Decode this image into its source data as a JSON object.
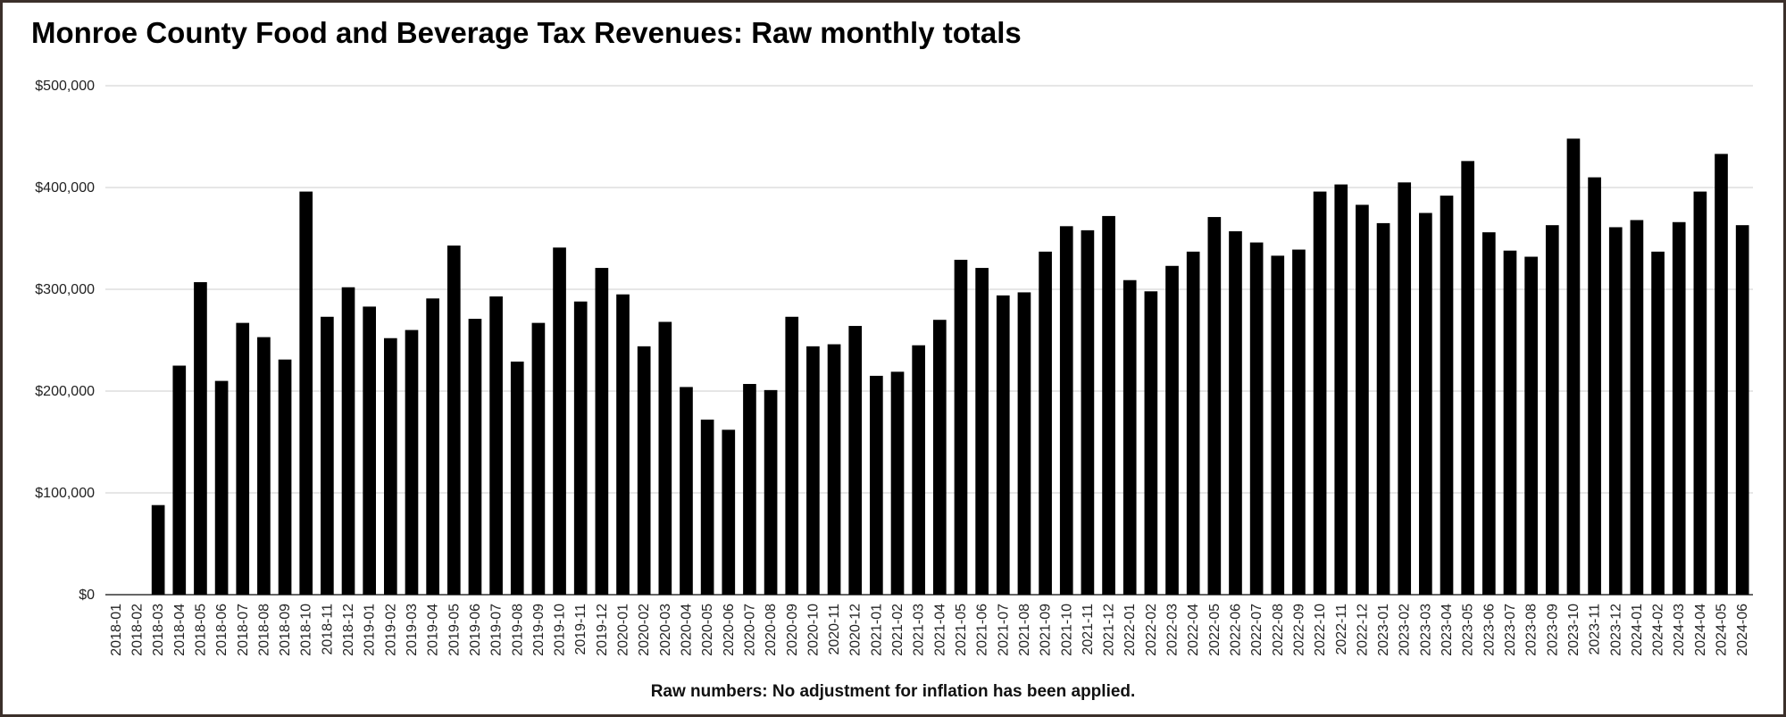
{
  "title": "Monroe County Food and Beverage Tax Revenues: Raw monthly totals",
  "footnote": "Raw numbers: No adjustment for inflation has been applied.",
  "colors": {
    "bar": "#000000",
    "grid": "#cccccc",
    "axis": "#333333"
  },
  "chart_data": {
    "type": "bar",
    "title": "Monroe County Food and Beverage Tax Revenues: Raw monthly totals",
    "xlabel": "",
    "ylabel": "",
    "ylim": [
      0,
      500000
    ],
    "yticks": [
      0,
      100000,
      200000,
      300000,
      400000,
      500000
    ],
    "ytick_labels": [
      "$0",
      "$100,000",
      "$200,000",
      "$300,000",
      "$400,000",
      "$500,000"
    ],
    "grid": true,
    "legend": "none",
    "categories": [
      "2018-01",
      "2018-02",
      "2018-03",
      "2018-04",
      "2018-05",
      "2018-06",
      "2018-07",
      "2018-08",
      "2018-09",
      "2018-10",
      "2018-11",
      "2018-12",
      "2019-01",
      "2019-02",
      "2019-03",
      "2019-04",
      "2019-05",
      "2019-06",
      "2019-07",
      "2019-08",
      "2019-09",
      "2019-10",
      "2019-11",
      "2019-12",
      "2020-01",
      "2020-02",
      "2020-03",
      "2020-04",
      "2020-05",
      "2020-06",
      "2020-07",
      "2020-08",
      "2020-09",
      "2020-10",
      "2020-11",
      "2020-12",
      "2021-01",
      "2021-02",
      "2021-03",
      "2021-04",
      "2021-05",
      "2021-06",
      "2021-07",
      "2021-08",
      "2021-09",
      "2021-10",
      "2021-11",
      "2021-12",
      "2022-01",
      "2022-02",
      "2022-03",
      "2022-04",
      "2022-05",
      "2022-06",
      "2022-07",
      "2022-08",
      "2022-09",
      "2022-10",
      "2022-11",
      "2022-12",
      "2023-01",
      "2023-02",
      "2023-03",
      "2023-04",
      "2023-05",
      "2023-06",
      "2023-07",
      "2023-08",
      "2023-09",
      "2023-10",
      "2023-11",
      "2023-12",
      "2024-01",
      "2024-02",
      "2024-03",
      "2024-04",
      "2024-05",
      "2024-06"
    ],
    "values": [
      0,
      0,
      88000,
      225000,
      307000,
      210000,
      267000,
      253000,
      231000,
      396000,
      273000,
      302000,
      283000,
      252000,
      260000,
      291000,
      343000,
      271000,
      293000,
      229000,
      267000,
      341000,
      288000,
      321000,
      295000,
      244000,
      268000,
      204000,
      172000,
      162000,
      207000,
      201000,
      273000,
      244000,
      246000,
      264000,
      215000,
      219000,
      245000,
      270000,
      329000,
      321000,
      294000,
      297000,
      337000,
      362000,
      358000,
      372000,
      309000,
      298000,
      323000,
      337000,
      371000,
      357000,
      346000,
      333000,
      339000,
      396000,
      403000,
      383000,
      365000,
      405000,
      375000,
      392000,
      426000,
      356000,
      338000,
      332000,
      363000,
      448000,
      410000,
      361000,
      368000,
      337000,
      366000,
      396000,
      433000,
      363000
    ]
  }
}
